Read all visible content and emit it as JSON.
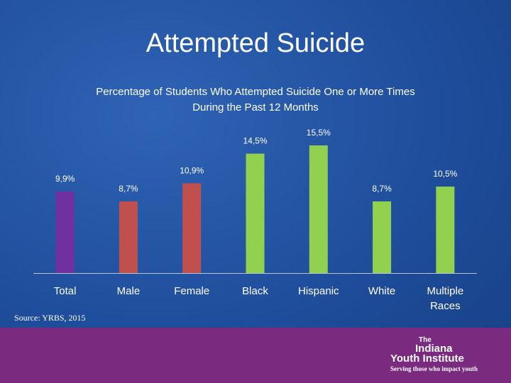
{
  "chart_data": {
    "type": "bar",
    "title": "Attempted Suicide",
    "subtitle": [
      "Percentage of Students Who Attempted Suicide One or More Times",
      "During the Past 12 Months"
    ],
    "categories": [
      "Total",
      "Male",
      "Female",
      "Black",
      "Hispanic",
      "White",
      "Multiple Races"
    ],
    "values": [
      9.9,
      8.7,
      10.9,
      14.5,
      15.5,
      8.7,
      10.5
    ],
    "value_labels": [
      "9,9%",
      "8,7%",
      "10,9%",
      "14,5%",
      "15,5%",
      "8,7%",
      "10,5%"
    ],
    "colors": [
      "#7030a0",
      "#c0504d",
      "#c0504d",
      "#92d050",
      "#92d050",
      "#92d050",
      "#92d050"
    ],
    "source": "Source: YRBS, 2015"
  },
  "logo": {
    "line1": "The",
    "line2": "Indiana",
    "line3": "Youth Institute",
    "tagline": "Serving those who impact youth"
  }
}
